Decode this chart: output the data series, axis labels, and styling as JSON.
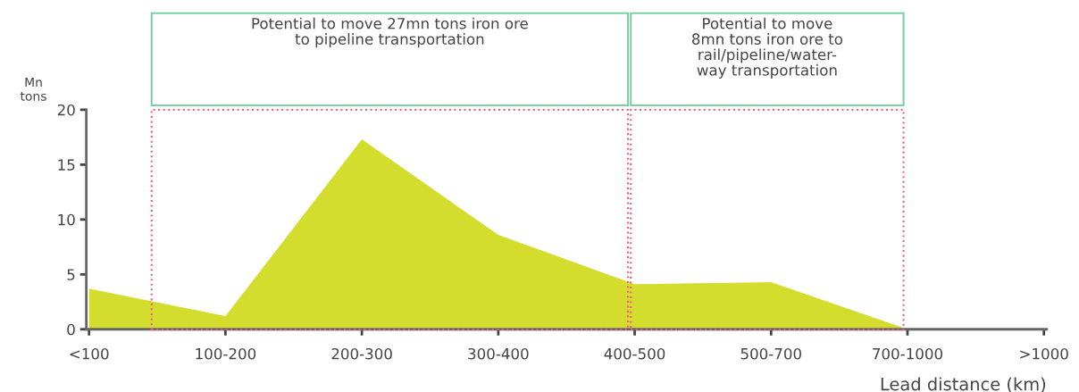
{
  "chart_data": {
    "type": "area",
    "ylabel": "Mn\ntons",
    "xlabel": "Lead distance (km)",
    "categories": [
      "<100",
      "100-200",
      "200-300",
      "300-400",
      "400-500",
      "500-700",
      "700-1000",
      ">1000"
    ],
    "series": [
      {
        "color": "#d4dd2e",
        "values": [
          3.7,
          1.2,
          17.3,
          8.6,
          4.1,
          4.3,
          0,
          null
        ]
      }
    ],
    "ylim": [
      0,
      20
    ],
    "yticks": [
      0,
      5,
      10,
      15,
      20
    ],
    "grid": false,
    "legend": false,
    "annotations": [
      "Potential to move 27mn tons iron ore\nto pipeline transportation",
      "Potential to move\n8mn tons iron ore to\nrail/pipeline/water-\nway transportation"
    ]
  }
}
